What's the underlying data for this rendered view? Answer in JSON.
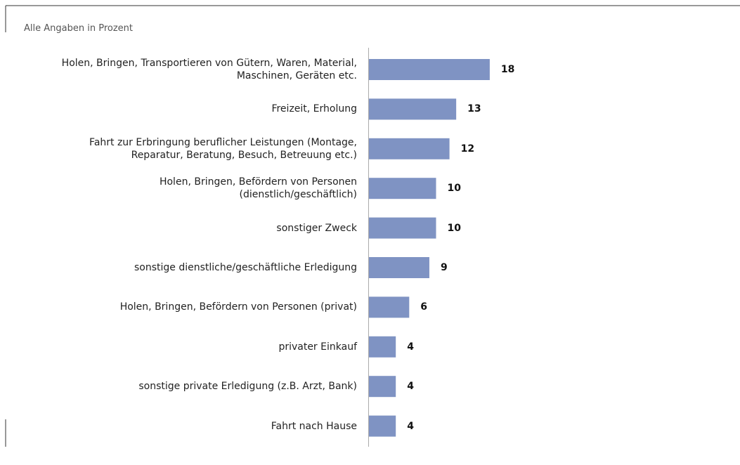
{
  "chart_data": {
    "type": "barh",
    "subtitle": "Alle Angaben in Prozent",
    "categories": [
      "Holen, Bringen, Transportieren von Gütern, Waren, Material,\nMaschinen, Geräten etc.",
      "Freizeit, Erholung",
      "Fahrt zur Erbringung beruflicher Leistungen (Montage,\nReparatur, Beratung, Besuch, Betreuung etc.)",
      "Holen, Bringen, Befördern von Personen\n(dienstlich/geschäftlich)",
      "sonstiger Zweck",
      "sonstige dienstliche/geschäftliche Erledigung",
      "Holen, Bringen, Befördern von Personen (privat)",
      "privater Einkauf",
      "sonstige private Erledigung (z.B. Arzt, Bank)",
      "Fahrt nach Hause"
    ],
    "values": [
      18,
      13,
      12,
      10,
      10,
      9,
      6,
      4,
      4,
      4
    ],
    "color": "#7f93c3"
  }
}
